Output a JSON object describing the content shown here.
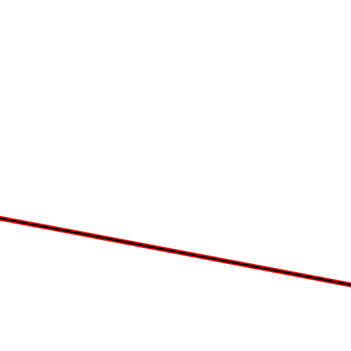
{
  "canvas": {
    "background": "#ffffff"
  },
  "line": {
    "outer_color": "#ff0000",
    "inner_color": "#000000"
  }
}
